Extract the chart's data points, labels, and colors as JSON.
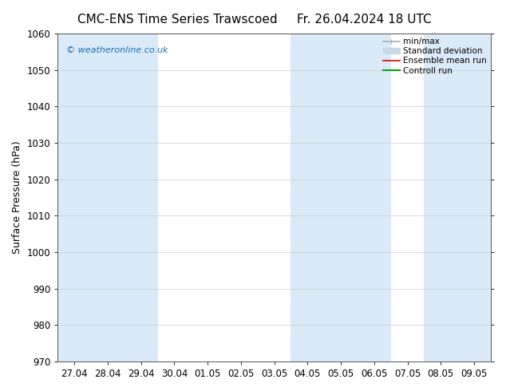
{
  "title_left": "CMC-ENS Time Series Trawscoed",
  "title_right": "Fr. 26.04.2024 18 UTC",
  "ylabel": "Surface Pressure (hPa)",
  "ylim": [
    970,
    1060
  ],
  "yticks": [
    970,
    980,
    990,
    1000,
    1010,
    1020,
    1030,
    1040,
    1050,
    1060
  ],
  "x_labels": [
    "27.04",
    "28.04",
    "29.04",
    "30.04",
    "01.05",
    "02.05",
    "03.05",
    "04.05",
    "05.05",
    "06.05",
    "07.05",
    "08.05",
    "09.05"
  ],
  "shaded_indices": [
    0,
    1,
    2,
    7,
    8,
    9,
    11,
    12
  ],
  "band_color": "#daeaf8",
  "background_color": "#ffffff",
  "plot_bg_color": "#ffffff",
  "copyright_text": "© weatheronline.co.uk",
  "copyright_color": "#1a6cb5",
  "legend_items": [
    {
      "label": "min/max",
      "color": "#aaaaaa",
      "lw": 1.2
    },
    {
      "label": "Standard deviation",
      "color": "#c8d8e8",
      "lw": 7
    },
    {
      "label": "Ensemble mean run",
      "color": "#dd0000",
      "lw": 1.2
    },
    {
      "label": "Controll run",
      "color": "#00aa00",
      "lw": 1.5
    }
  ],
  "title_fontsize": 11,
  "tick_fontsize": 8.5,
  "ylabel_fontsize": 9,
  "figsize": [
    6.34,
    4.9
  ],
  "dpi": 100
}
